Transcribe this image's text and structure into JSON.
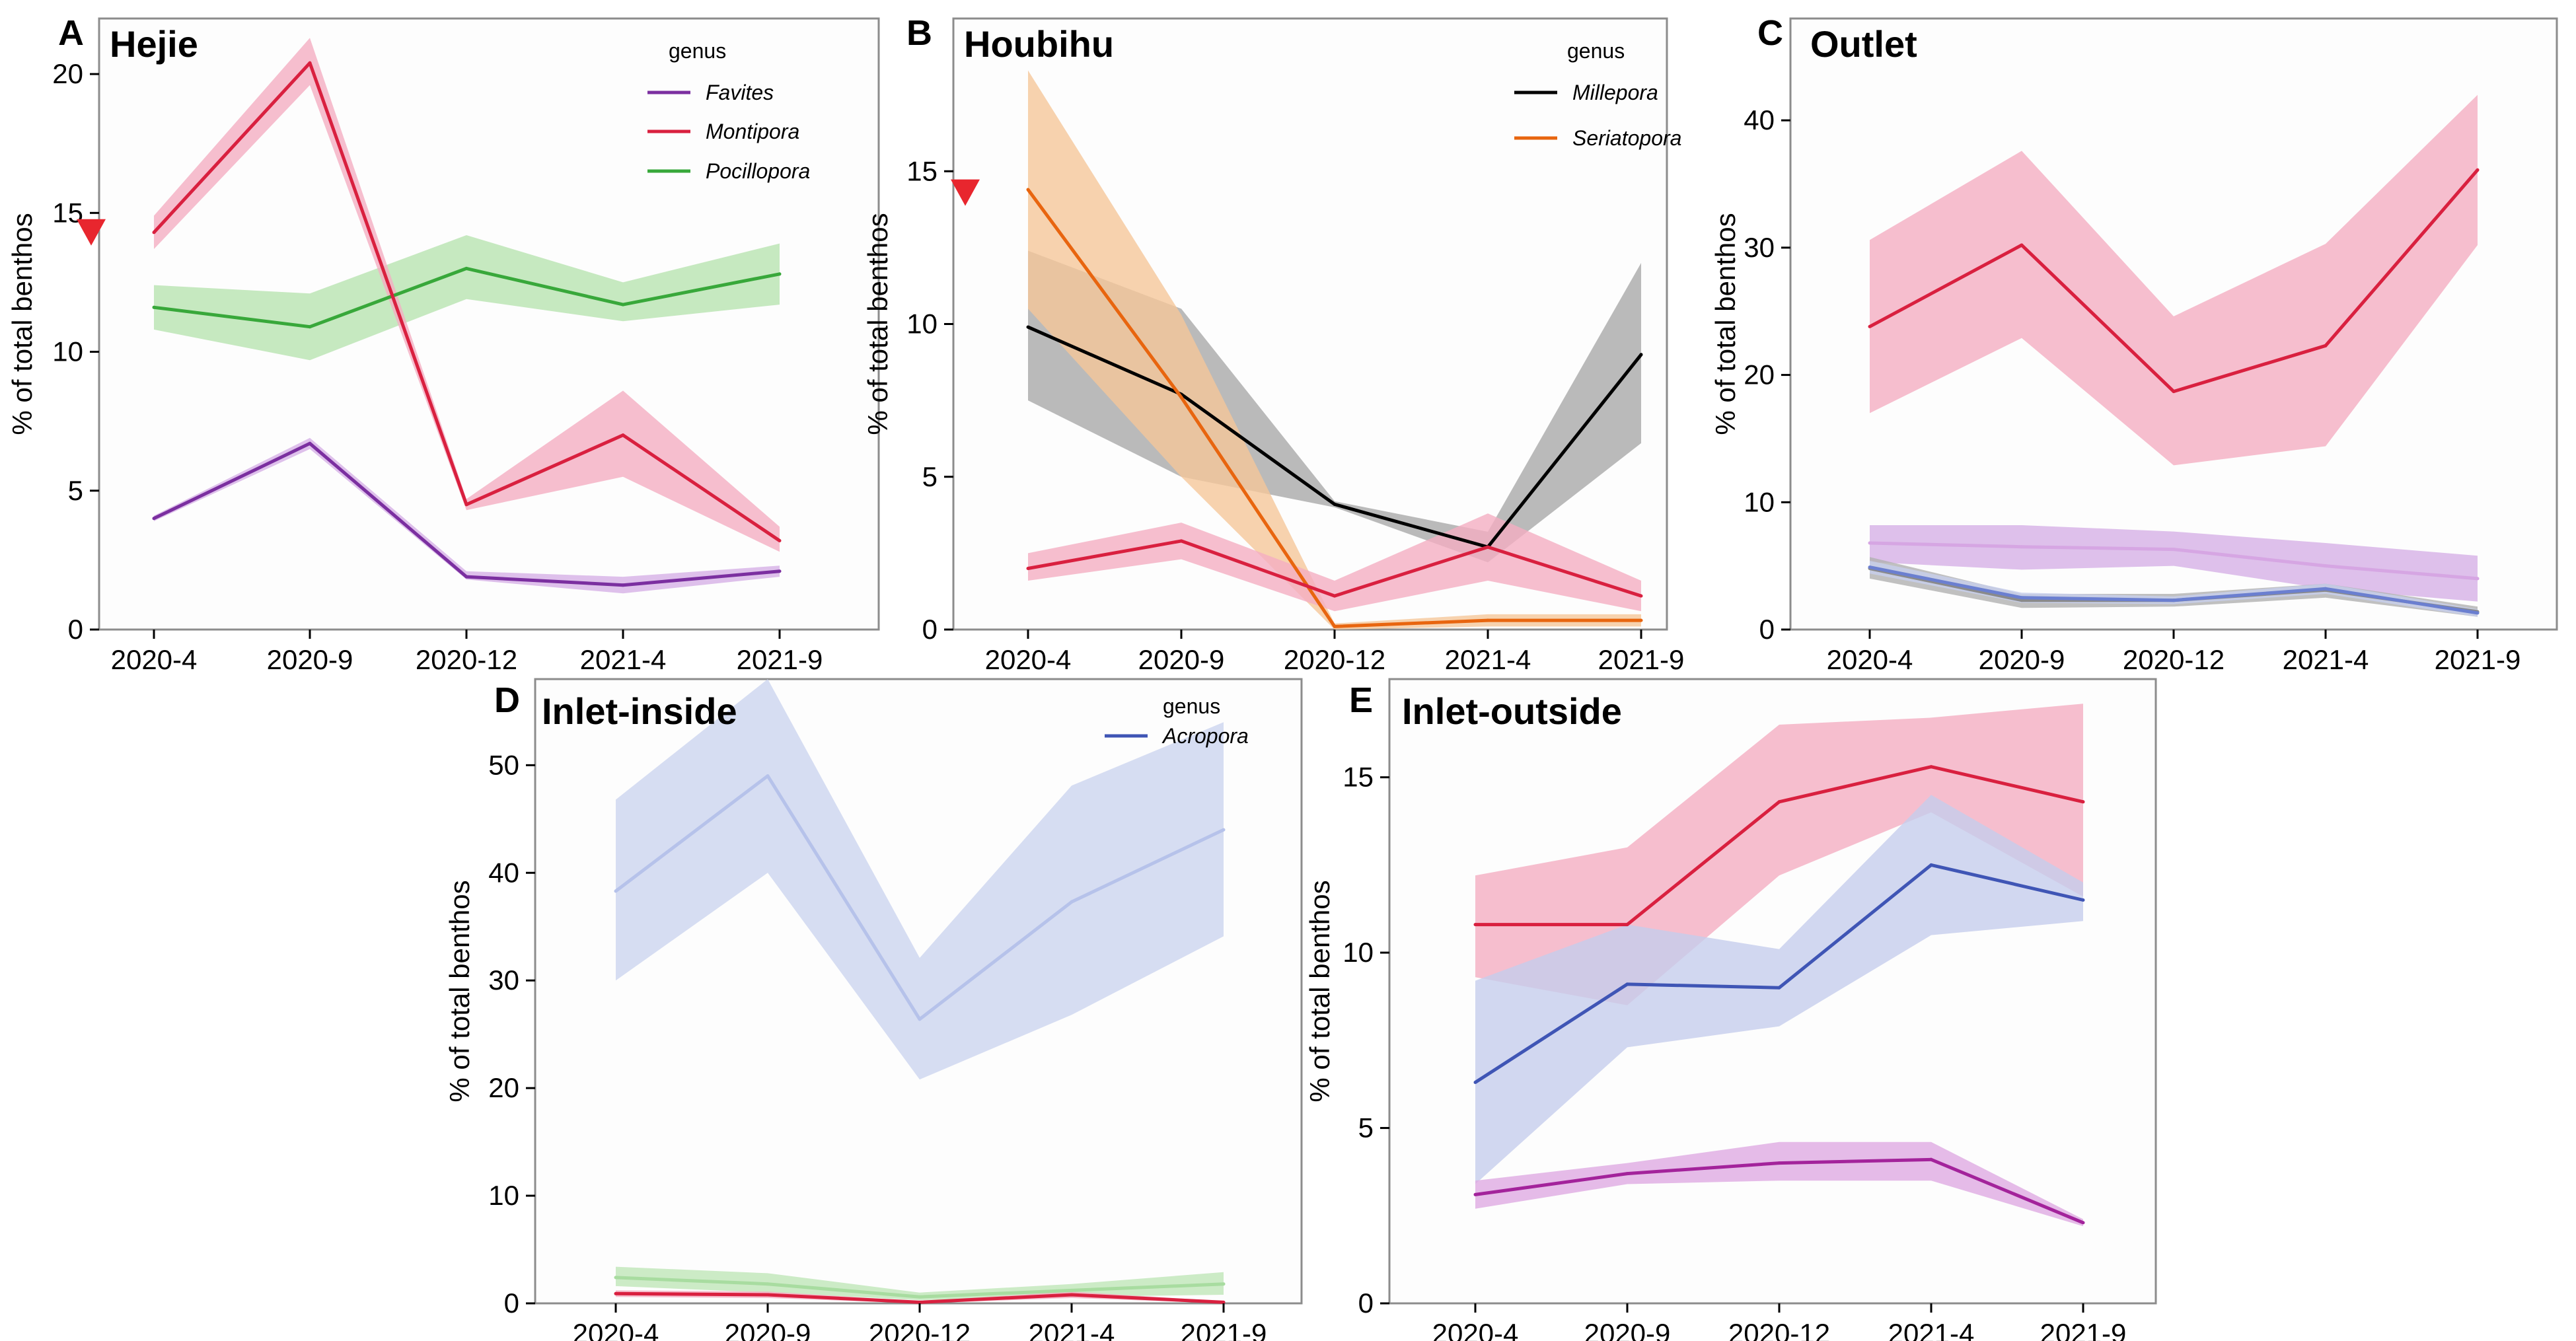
{
  "figure": {
    "categories": [
      "2020-4",
      "2020-9",
      "2020-12",
      "2021-4",
      "2021-9"
    ],
    "ylabel": "% of total benthos"
  },
  "colors": {
    "Favites": "#7b2fa0",
    "Montipora": "#d9203f",
    "Pocillopora": "#38a83a",
    "Millepora": "#000000",
    "Seriatopora": "#e8650f",
    "Acropora": "#3f55b5"
  },
  "chart_data": [
    {
      "type": "line",
      "letter": "A",
      "title": "Hejie",
      "ylim": [
        0,
        22
      ],
      "yticks": [
        0,
        5,
        10,
        15,
        20
      ],
      "legend": {
        "title": "genus",
        "items": [
          "Favites",
          "Montipora",
          "Pocillopora"
        ]
      },
      "series": [
        {
          "genus": "Pocillopora",
          "color": "#38a83a",
          "band": "#b8e3b0",
          "values": [
            11.6,
            10.9,
            13.0,
            11.7,
            12.8
          ],
          "lower": [
            10.8,
            9.7,
            11.9,
            11.1,
            11.7
          ],
          "upper": [
            12.4,
            12.1,
            14.2,
            12.5,
            13.9
          ]
        },
        {
          "genus": "Montipora",
          "color": "#d9203f",
          "band": "#f4aec2",
          "values": [
            14.3,
            20.4,
            4.5,
            7.0,
            3.2
          ],
          "lower": [
            13.7,
            19.6,
            4.3,
            5.5,
            2.8
          ],
          "upper": [
            14.9,
            21.3,
            4.7,
            8.6,
            3.7
          ]
        },
        {
          "genus": "Favites",
          "color": "#7b2fa0",
          "band": "#d6b0e6",
          "values": [
            4.0,
            6.7,
            1.9,
            1.6,
            2.1
          ],
          "lower": [
            3.9,
            6.5,
            1.8,
            1.3,
            1.9
          ],
          "upper": [
            4.1,
            6.9,
            2.1,
            1.9,
            2.3
          ]
        }
      ],
      "marker": {
        "type": "triangle-down",
        "color": "#e8262e",
        "y": 14.3
      }
    },
    {
      "type": "line",
      "letter": "B",
      "title": "Houbihu",
      "ylim": [
        0,
        20
      ],
      "yticks": [
        0,
        5,
        10,
        15
      ],
      "legend": {
        "title": "genus",
        "items": [
          "Millepora",
          "Seriatopora"
        ]
      },
      "series": [
        {
          "genus": "Millepora",
          "color": "#000000",
          "band": "#a9a9a9",
          "values": [
            9.9,
            7.7,
            4.1,
            2.7,
            9.0
          ],
          "lower": [
            7.5,
            5.0,
            4.0,
            2.2,
            6.1
          ],
          "upper": [
            12.4,
            10.5,
            4.2,
            3.2,
            12.0
          ]
        },
        {
          "genus": "Seriatopora",
          "color": "#e8650f",
          "band": "#f5c79a",
          "values": [
            14.4,
            7.6,
            0.1,
            0.3,
            0.3
          ],
          "lower": [
            10.5,
            5.0,
            0.0,
            0.1,
            0.1
          ],
          "upper": [
            18.3,
            10.3,
            0.2,
            0.5,
            0.5
          ]
        },
        {
          "genus": "Montipora",
          "color": "#d9203f",
          "band": "#f4aec2",
          "values": [
            2.0,
            2.9,
            1.1,
            2.7,
            1.1
          ],
          "lower": [
            1.6,
            2.3,
            0.6,
            1.6,
            0.6
          ],
          "upper": [
            2.5,
            3.5,
            1.6,
            3.8,
            1.6
          ]
        }
      ],
      "marker": {
        "type": "triangle-down",
        "color": "#e8262e",
        "y": 14.3
      }
    },
    {
      "type": "line",
      "letter": "C",
      "title": "Outlet",
      "ylim": [
        0,
        48
      ],
      "yticks": [
        0,
        10,
        20,
        30,
        40
      ],
      "legend": null,
      "series": [
        {
          "genus": "Montipora",
          "color": "#d9203f",
          "band": "#f4aec2",
          "values": [
            23.8,
            30.2,
            18.7,
            22.3,
            36.1
          ],
          "lower": [
            17.0,
            22.9,
            12.9,
            14.4,
            30.2
          ],
          "upper": [
            30.6,
            37.6,
            24.6,
            30.3,
            42.0
          ]
        },
        {
          "genus": "Favites",
          "color": "#d6a6e3",
          "band": "#d6b0e6",
          "values": [
            6.8,
            6.5,
            6.3,
            5.0,
            4.0
          ],
          "lower": [
            5.3,
            4.7,
            5.0,
            3.2,
            2.2
          ],
          "upper": [
            8.2,
            8.2,
            7.7,
            6.8,
            5.8
          ]
        },
        {
          "genus": "Millepora",
          "color": "#8a8a8a",
          "band": "#b0b0b0",
          "values": [
            4.8,
            2.3,
            2.3,
            3.1,
            1.4
          ],
          "lower": [
            4.0,
            1.7,
            1.8,
            2.5,
            1.0
          ],
          "upper": [
            5.7,
            2.8,
            2.8,
            3.6,
            1.8
          ]
        },
        {
          "genus": "Acropora",
          "color": "#6b7fd0",
          "band": "#c7ceec",
          "values": [
            4.9,
            2.5,
            2.3,
            3.2,
            1.3
          ],
          "lower": [
            4.4,
            2.1,
            2.0,
            2.8,
            1.0
          ],
          "upper": [
            5.4,
            2.9,
            2.6,
            3.6,
            1.6
          ]
        }
      ],
      "marker": null
    },
    {
      "type": "line",
      "letter": "D",
      "title": "Inlet-inside",
      "ylim": [
        0,
        58
      ],
      "yticks": [
        0,
        10,
        20,
        30,
        40,
        50
      ],
      "legend": {
        "title": "genus",
        "items": [
          "Acropora"
        ]
      },
      "series": [
        {
          "genus": "Acropora",
          "color": "#b6c2ea",
          "band": "#ccd4ef",
          "values": [
            38.3,
            49.0,
            26.4,
            37.3,
            44.0
          ],
          "lower": [
            30.0,
            40.0,
            20.8,
            26.8,
            34.1
          ],
          "upper": [
            46.8,
            58.0,
            32.1,
            48.1,
            54.0
          ]
        },
        {
          "genus": "Pocillopora",
          "color": "#a8dca0",
          "band": "#bfe6b8",
          "values": [
            2.4,
            1.8,
            0.6,
            1.2,
            1.8
          ],
          "lower": [
            1.6,
            1.0,
            0.3,
            0.6,
            0.8
          ],
          "upper": [
            3.4,
            2.8,
            1.0,
            1.8,
            2.9
          ]
        },
        {
          "genus": "Montipora",
          "color": "#d9203f",
          "band": "#f4aec2",
          "values": [
            0.9,
            0.8,
            0.1,
            0.8,
            0.1
          ],
          "lower": [
            0.6,
            0.5,
            0.0,
            0.5,
            0.0
          ],
          "upper": [
            1.2,
            1.1,
            0.2,
            1.1,
            0.2
          ]
        }
      ],
      "marker": null
    },
    {
      "type": "line",
      "letter": "E",
      "title": "Inlet-outside",
      "ylim": [
        0,
        17.8
      ],
      "yticks": [
        0,
        5,
        10,
        15
      ],
      "legend": null,
      "series": [
        {
          "genus": "Montipora",
          "color": "#d9203f",
          "band": "#f4aec2",
          "values": [
            10.8,
            10.8,
            14.3,
            15.3,
            14.3
          ],
          "lower": [
            9.3,
            8.5,
            12.2,
            14.0,
            11.6
          ],
          "upper": [
            12.2,
            13.0,
            16.5,
            16.7,
            17.1
          ]
        },
        {
          "genus": "Acropora",
          "color": "#3f55b5",
          "band": "#c6cdec",
          "values": [
            6.3,
            9.1,
            9.0,
            12.5,
            11.5
          ],
          "lower": [
            3.4,
            7.3,
            7.9,
            10.5,
            10.9
          ],
          "upper": [
            9.2,
            10.8,
            10.1,
            14.5,
            12.0
          ]
        },
        {
          "genus": "Favites",
          "color": "#a3239b",
          "band": "#deaae2",
          "values": [
            3.1,
            3.7,
            4.0,
            4.1,
            2.3
          ],
          "lower": [
            2.7,
            3.4,
            3.5,
            3.5,
            2.2
          ],
          "upper": [
            3.5,
            4.0,
            4.6,
            4.6,
            2.4
          ]
        }
      ],
      "marker": null
    }
  ]
}
